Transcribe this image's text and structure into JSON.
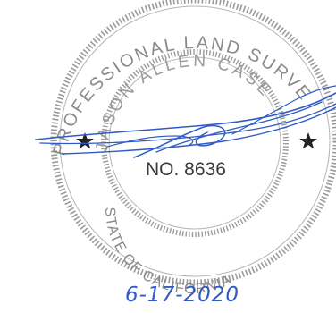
{
  "seal": {
    "top_arc_text": "PROFESSIONAL LAND SURVEYOR",
    "licensee_name": "JASON ALLEN CASE",
    "license_number": "NO. 8636",
    "bottom_arc_text": "STATE OF CALIFORNIA",
    "ink_color": "#8a8a8a"
  },
  "signature": {
    "ink_color": "#2f5cc4"
  },
  "date": {
    "text": "6-17-2020",
    "ink_color": "#2f5cc4"
  }
}
